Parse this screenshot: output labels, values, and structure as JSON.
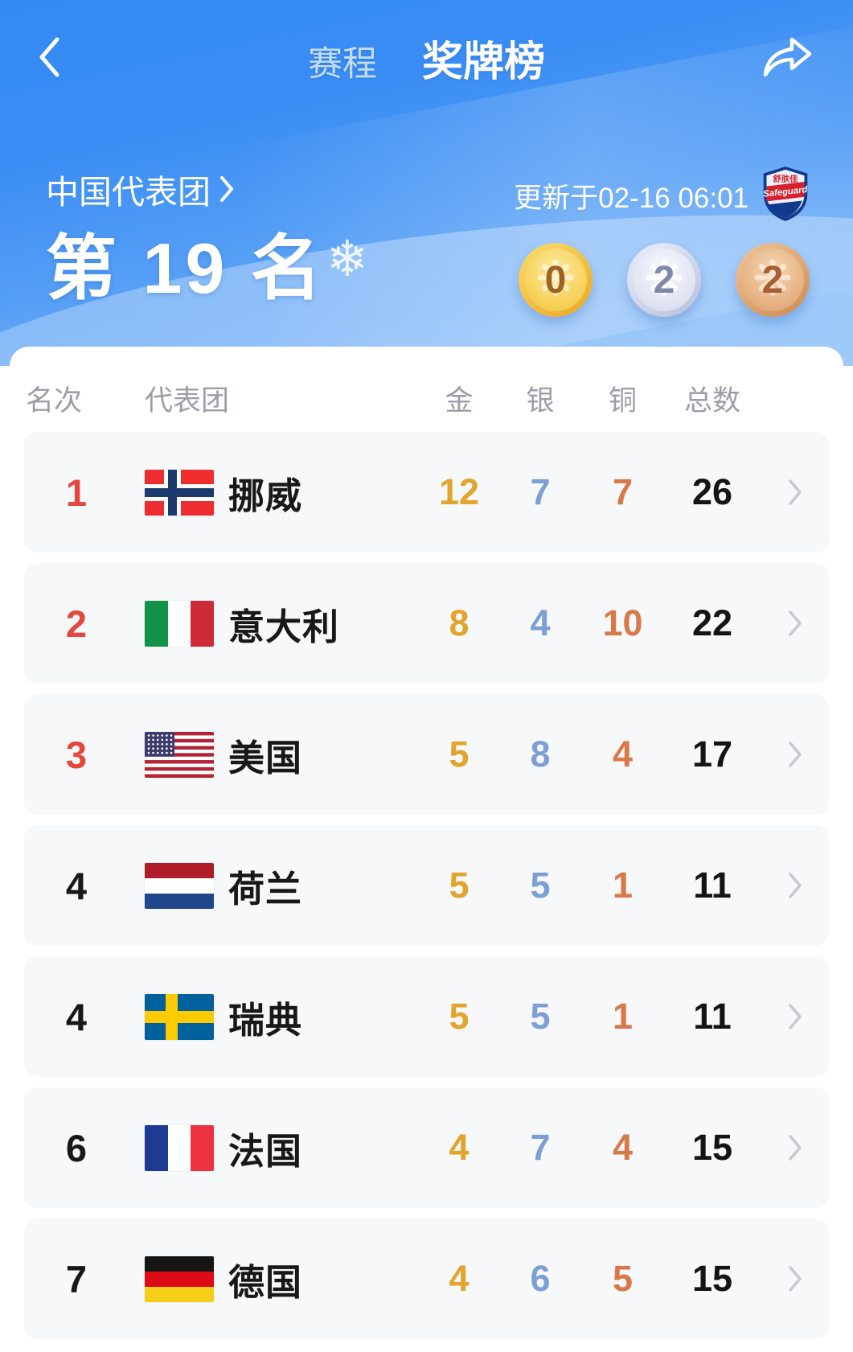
{
  "header": {
    "tabs": {
      "schedule": "赛程",
      "medals": "奖牌榜"
    }
  },
  "banner": {
    "delegation": "中国代表团",
    "delegation_chevron": "›",
    "updated": "更新于02-16 06:01",
    "sponsor": {
      "brand": "Safeguard",
      "brand_cn": "舒肤佳"
    },
    "rank_text": "第 19 名",
    "snowflake": "❄",
    "medal_summary": [
      {
        "type": "gold",
        "count": "0"
      },
      {
        "type": "silver",
        "count": "2"
      },
      {
        "type": "bronze",
        "count": "2"
      }
    ]
  },
  "table": {
    "columns": [
      "名次",
      "代表团",
      "金",
      "银",
      "铜",
      "总数"
    ],
    "rows": [
      {
        "rank": "1",
        "flag": "norway",
        "name": "挪威",
        "gold": "12",
        "silver": "7",
        "bronze": "7",
        "total": "26"
      },
      {
        "rank": "2",
        "flag": "italy",
        "name": "意大利",
        "gold": "8",
        "silver": "4",
        "bronze": "10",
        "total": "22"
      },
      {
        "rank": "3",
        "flag": "usa",
        "name": "美国",
        "gold": "5",
        "silver": "8",
        "bronze": "4",
        "total": "17"
      },
      {
        "rank": "4",
        "flag": "netherlands",
        "name": "荷兰",
        "gold": "5",
        "silver": "5",
        "bronze": "1",
        "total": "11"
      },
      {
        "rank": "4",
        "flag": "sweden",
        "name": "瑞典",
        "gold": "5",
        "silver": "5",
        "bronze": "1",
        "total": "11"
      },
      {
        "rank": "6",
        "flag": "france",
        "name": "法国",
        "gold": "4",
        "silver": "7",
        "bronze": "4",
        "total": "15"
      },
      {
        "rank": "7",
        "flag": "germany",
        "name": "德国",
        "gold": "4",
        "silver": "6",
        "bronze": "5",
        "total": "15"
      }
    ]
  },
  "colors": {
    "hero_top": "#3489f3",
    "hero_bottom": "#8fc3f8",
    "rank_red": "#e5463d",
    "gold": "#e2a42c",
    "silver": "#7b9fd6",
    "bronze": "#d9794a",
    "row_bg": "#f7f8fa",
    "header_gray": "#9b9ea6"
  }
}
